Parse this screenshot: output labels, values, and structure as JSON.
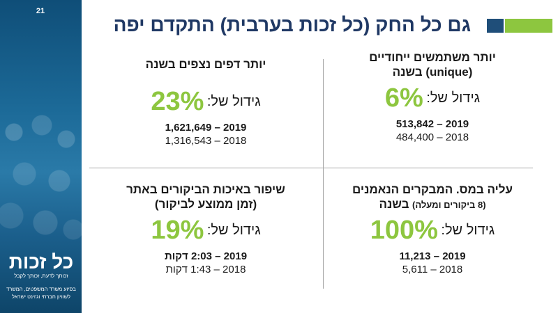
{
  "slide": {
    "page_number": "21",
    "title": "גם כל החק (כל זכות בערבית) התקדם יפה"
  },
  "sidebar": {
    "logo_text": "כל זכות",
    "logo_tagline": "זכותך לדעת, זכותך לקבל",
    "support_text": "בסיוע משרד המשפטים, המשרד לשוויון חברתי וג'וינט ישראל"
  },
  "quadrants": {
    "top_right": {
      "heading": "יותר משתמשים ייחודיים",
      "heading_line2": "(unique) בשנה",
      "growth_label": "גידול של:",
      "growth_value": "6%",
      "line1": "2019 – 513,842",
      "line2": "2018 – 484,400"
    },
    "top_left": {
      "heading": "יותר דפים נצפים בשנה",
      "growth_label": "גידול של:",
      "growth_value": "23%",
      "line1": "2019 – 1,621,649",
      "line2": "2018 – 1,316,543"
    },
    "bottom_right": {
      "heading": "עליה במס. המבקרים הנאמנים",
      "heading_line2": "(8 ביקורים ומעלה)",
      "heading_line2_suffix": "בשנה",
      "growth_label": "גידול של:",
      "growth_value": "100%",
      "line1": "2019 – 11,213",
      "line2": "2018 – 5,611"
    },
    "bottom_left": {
      "heading": "שיפור באיכות הביקורים באתר",
      "heading_line2": "(זמן ממוצע לביקור)",
      "growth_label": "גידול של:",
      "growth_value": "19%",
      "line1": "2019 – 2:03 דקות",
      "line2": "2018 – 1:43 דקות"
    }
  },
  "colors": {
    "title": "#1f3864",
    "accent_green": "#8dc63f",
    "accent_blue": "#1f4e79"
  }
}
